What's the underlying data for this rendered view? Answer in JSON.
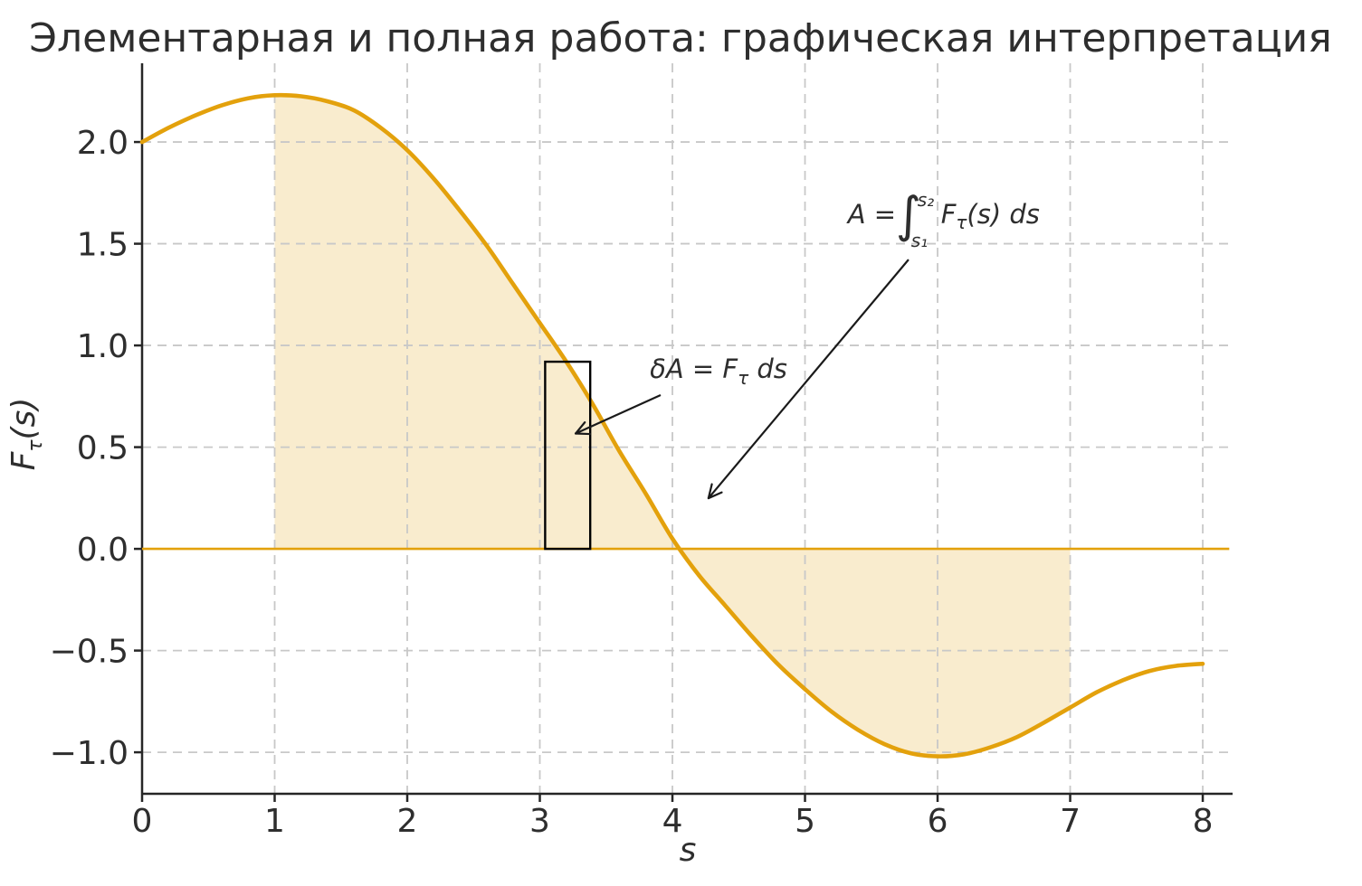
{
  "chart_data": {
    "type": "line",
    "title": "Элементарная и полная работа: графическая интерпретация",
    "xlabel": "s",
    "ylabel": "Fτ(s)",
    "ylabel_parts": {
      "pre": "F",
      "sub": "τ",
      "post": "(s)"
    },
    "xlim": [
      0,
      8.225
    ],
    "ylim": [
      -1.204,
      2.387
    ],
    "grid": true,
    "legend": "none",
    "xticks": [
      0,
      1,
      2,
      3,
      4,
      5,
      6,
      7,
      8
    ],
    "xtick_labels": [
      "0",
      "1",
      "2",
      "3",
      "4",
      "5",
      "6",
      "7",
      "8"
    ],
    "yticks": [
      -1.0,
      -0.5,
      0.0,
      0.5,
      1.0,
      1.5,
      2.0
    ],
    "ytick_labels": [
      "−1.0",
      "−0.5",
      "0.0",
      "0.5",
      "1.0",
      "1.5",
      "2.0"
    ],
    "series": [
      {
        "name": "F_tau_curve",
        "x": [
          0.0,
          0.2,
          0.4,
          0.6,
          0.8,
          1.0,
          1.2,
          1.4,
          1.6,
          1.8,
          2.0,
          2.2,
          2.4,
          2.6,
          2.8,
          3.0,
          3.2,
          3.4,
          3.6,
          3.8,
          4.0,
          4.2,
          4.4,
          4.6,
          4.8,
          5.0,
          5.2,
          5.4,
          5.6,
          5.8,
          6.0,
          6.2,
          6.4,
          6.6,
          6.8,
          7.0,
          7.2,
          7.4,
          7.6,
          7.8,
          8.0
        ],
        "y": [
          2.0,
          2.07,
          2.13,
          2.18,
          2.215,
          2.23,
          2.225,
          2.2,
          2.155,
          2.07,
          1.96,
          1.82,
          1.66,
          1.49,
          1.3,
          1.11,
          0.92,
          0.71,
          0.48,
          0.27,
          0.05,
          -0.13,
          -0.28,
          -0.43,
          -0.57,
          -0.69,
          -0.8,
          -0.89,
          -0.96,
          -1.005,
          -1.02,
          -1.01,
          -0.975,
          -0.925,
          -0.855,
          -0.78,
          -0.705,
          -0.645,
          -0.6,
          -0.575,
          -0.565
        ]
      }
    ],
    "zero_line": {
      "y": 0,
      "x_from": 0,
      "x_to": 8.2
    },
    "fill_between": {
      "s1": 1.0,
      "s2": 7.0,
      "baseline": 0
    },
    "delta_rect": {
      "s0": 3.04,
      "s1": 3.38,
      "f0": 0.0,
      "f1": 0.92
    },
    "annotations": [
      {
        "name": "elementary-work-formula",
        "parts": {
          "pre": "δA = F",
          "sub": "τ",
          "post": " ds"
        },
        "text_xy": [
          3.83,
          0.84
        ],
        "arrow_tail": [
          3.911,
          0.756
        ],
        "arrow_head": [
          3.27,
          0.567
        ]
      },
      {
        "name": "total-work-integral-formula",
        "parts": {
          "pre": "A = ",
          "integral": "∫",
          "upper": "s₂",
          "lower": "s₁",
          "mid": "F",
          "mid_sub": "τ",
          "post": "(s) ds"
        },
        "text_xy": [
          5.322,
          1.6
        ],
        "arrow_tail": [
          5.781,
          1.422
        ],
        "arrow_head": [
          4.272,
          0.249
        ]
      }
    ],
    "colors": {
      "curve": "#E3A10C",
      "fill": "rgba(227,161,12,0.2)",
      "grid": "#c8c8c8",
      "spine": "#262626",
      "text": "#2e2e2e",
      "annotation": "#1a1a1a",
      "rect_stroke": "#000000",
      "background": "#ffffff"
    }
  }
}
